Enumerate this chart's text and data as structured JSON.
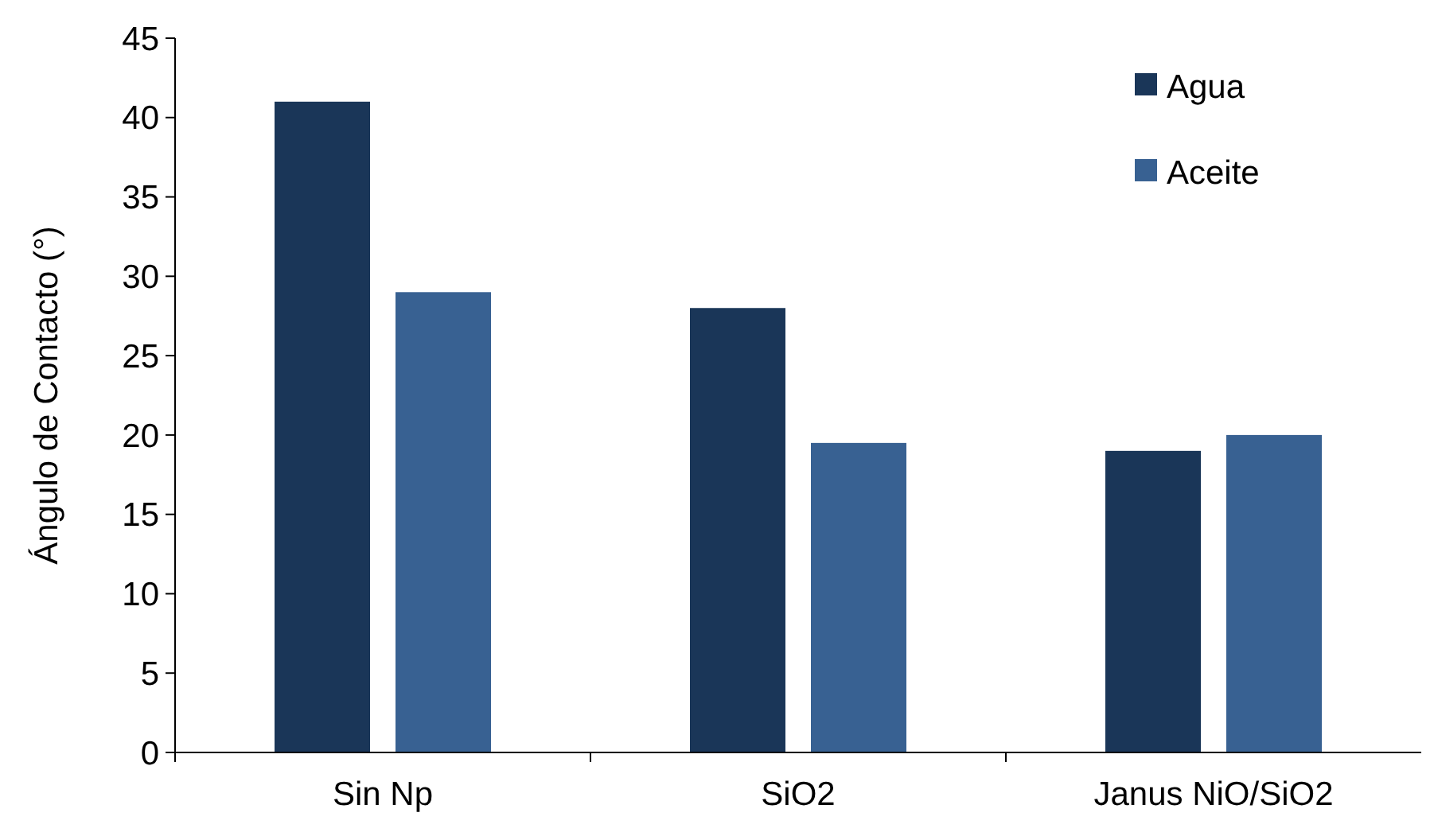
{
  "chart_data": {
    "type": "bar",
    "ylabel": "Ángulo de Contacto (°)",
    "categories": [
      "Sin Np",
      "SiO2",
      "Janus NiO/SiO2"
    ],
    "series": [
      {
        "name": "Agua",
        "color": "#1a3658",
        "values": [
          41,
          28,
          19
        ]
      },
      {
        "name": "Aceite",
        "color": "#386192",
        "values": [
          29,
          19.5,
          20
        ]
      }
    ],
    "ylim": [
      0,
      45
    ],
    "yticks": [
      0,
      5,
      10,
      15,
      20,
      25,
      30,
      35,
      40,
      45
    ],
    "grid": false,
    "legend": "top right"
  }
}
